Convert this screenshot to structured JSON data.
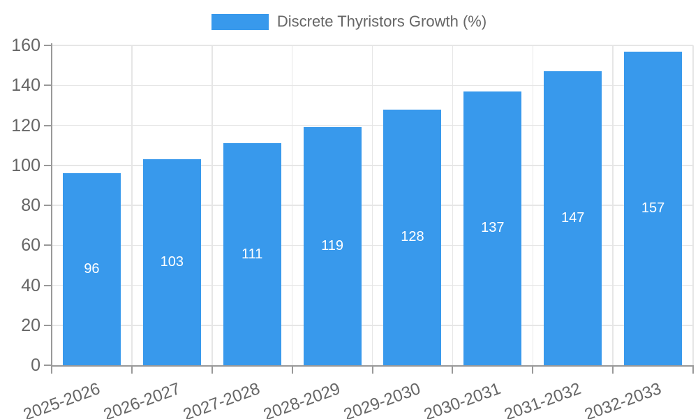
{
  "chart_data": {
    "type": "bar",
    "title": "Discrete Thyristors Growth (%)",
    "categories": [
      "2025-2026",
      "2026-2027",
      "2027-2028",
      "2028-2029",
      "2029-2030",
      "2030-2031",
      "2031-2032",
      "2032-2033"
    ],
    "values": [
      96,
      103,
      111,
      119,
      128,
      137,
      147,
      157
    ],
    "xlabel": "",
    "ylabel": "",
    "ylim": [
      0,
      160
    ],
    "yticks": [
      0,
      20,
      40,
      60,
      80,
      100,
      120,
      140,
      160
    ],
    "grid": true,
    "legend_position": "top",
    "bar_label_position": "center",
    "x_label_rotation_deg": -20,
    "colors": {
      "bar": "#3899EC",
      "bar_label": "#FFFFFF",
      "axis": "#999999",
      "grid": "#E6E6E6",
      "text": "#666666",
      "background": "#FFFFFF"
    }
  }
}
